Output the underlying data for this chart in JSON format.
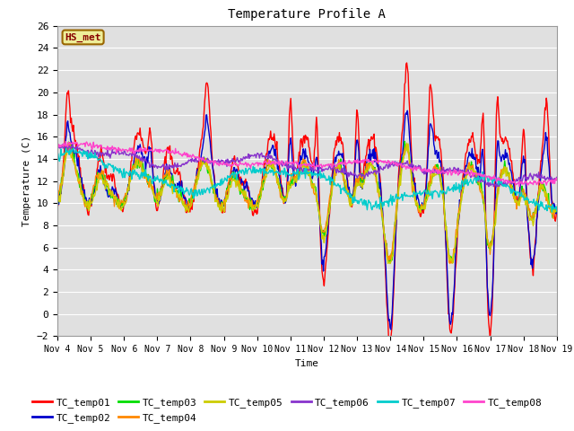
{
  "title": "Temperature Profile A",
  "xlabel": "Time",
  "ylabel": "Temperature (C)",
  "ylim": [
    -2,
    26
  ],
  "yticks": [
    -2,
    0,
    2,
    4,
    6,
    8,
    10,
    12,
    14,
    16,
    18,
    20,
    22,
    24,
    26
  ],
  "xtick_labels": [
    "Nov 4",
    "Nov 5",
    "Nov 6",
    "Nov 7",
    "Nov 8",
    "Nov 9",
    "Nov 10",
    "Nov 11",
    "Nov 12",
    "Nov 13",
    "Nov 14",
    "Nov 15",
    "Nov 16",
    "Nov 17",
    "Nov 18",
    "Nov 19"
  ],
  "series_colors": [
    "#ff0000",
    "#0000cc",
    "#00dd00",
    "#ff8800",
    "#cccc00",
    "#8833cc",
    "#00cccc",
    "#ff44cc"
  ],
  "series_names": [
    "TC_temp01",
    "TC_temp02",
    "TC_temp03",
    "TC_temp04",
    "TC_temp05",
    "TC_temp06",
    "TC_temp07",
    "TC_temp08"
  ],
  "annotation_text": "HS_met",
  "bg_color": "#e0e0e0",
  "fig_bg_color": "#ffffff",
  "linewidth": 1.0,
  "grid_color": "#ffffff",
  "font_family": "DejaVu Sans Mono"
}
